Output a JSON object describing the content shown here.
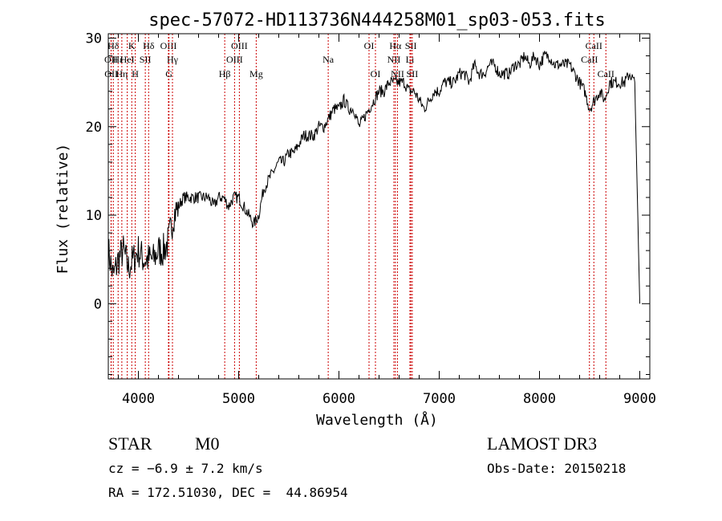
{
  "chart_data": {
    "type": "line",
    "title": "spec-57072-HD113736N444258M01_sp03-053.fits",
    "xlabel": "Wavelength (Å)",
    "ylabel": "Flux (relative)",
    "xlim": [
      3700,
      9100
    ],
    "ylim": [
      -8.5,
      30.5
    ],
    "xticks": [
      4000,
      5000,
      6000,
      7000,
      8000,
      9000
    ],
    "yticks": [
      0,
      10,
      20,
      30
    ],
    "x": [
      3700,
      3750,
      3800,
      3850,
      3900,
      3950,
      4000,
      4050,
      4100,
      4150,
      4200,
      4250,
      4300,
      4350,
      4400,
      4450,
      4500,
      4550,
      4600,
      4650,
      4700,
      4750,
      4800,
      4850,
      4900,
      4950,
      5000,
      5050,
      5100,
      5150,
      5200,
      5250,
      5300,
      5350,
      5400,
      5450,
      5500,
      5550,
      5600,
      5650,
      5700,
      5750,
      5800,
      5850,
      5900,
      5950,
      6000,
      6050,
      6100,
      6150,
      6200,
      6250,
      6300,
      6350,
      6400,
      6450,
      6500,
      6550,
      6600,
      6650,
      6700,
      6750,
      6800,
      6850,
      6900,
      6950,
      7000,
      7050,
      7100,
      7150,
      7200,
      7250,
      7300,
      7350,
      7400,
      7450,
      7500,
      7550,
      7600,
      7650,
      7700,
      7750,
      7800,
      7850,
      7900,
      7950,
      8000,
      8050,
      8100,
      8150,
      8200,
      8250,
      8300,
      8350,
      8400,
      8450,
      8500,
      8550,
      8600,
      8650,
      8700,
      8750,
      8800,
      8850,
      8900,
      8950,
      9000
    ],
    "series": [
      {
        "values": [
          6,
          3,
          5,
          6,
          4,
          5,
          6,
          5,
          5,
          5,
          6,
          6,
          7,
          10,
          11,
          12,
          12,
          12,
          12,
          12,
          12,
          11,
          12,
          12,
          11,
          12,
          12,
          11,
          10,
          9,
          10,
          13,
          14,
          15,
          16,
          16,
          17,
          17,
          18,
          19,
          19,
          19,
          20,
          20,
          21,
          22,
          22,
          23,
          22,
          22,
          20,
          21,
          22,
          23,
          24,
          24,
          25,
          25,
          25,
          25,
          24,
          24,
          23,
          22,
          23,
          24,
          24,
          25,
          25,
          25,
          26,
          26,
          25,
          27,
          26,
          26,
          27,
          27,
          26,
          26,
          26,
          27,
          27,
          28,
          27,
          28,
          27,
          28,
          28,
          27,
          27,
          27,
          27,
          26,
          25,
          24,
          22,
          23,
          24,
          23,
          25,
          25,
          25,
          25,
          26,
          25,
          0
        ]
      }
    ],
    "line_markers": [
      {
        "label": "Hδ",
        "x": 3750,
        "row": 1
      },
      {
        "label": "OII",
        "x": 3727,
        "row": 2
      },
      {
        "label": "OII",
        "x": 3729,
        "row": 3
      },
      {
        "label": "Hε",
        "x": 3798,
        "row": 2
      },
      {
        "label": "Hη",
        "x": 3835,
        "row": 3
      },
      {
        "label": "K",
        "x": 3934,
        "row": 1
      },
      {
        "label": "HeI",
        "x": 3889,
        "row": 2
      },
      {
        "label": "H",
        "x": 3969,
        "row": 3
      },
      {
        "label": "SII",
        "x": 4069,
        "row": 2
      },
      {
        "label": "Hδ",
        "x": 4102,
        "row": 1
      },
      {
        "label": "OIII",
        "x": 4300,
        "row": 1
      },
      {
        "label": "Hγ",
        "x": 4340,
        "row": 2
      },
      {
        "label": "G",
        "x": 4305,
        "row": 3
      },
      {
        "label": "Hβ",
        "x": 4861,
        "row": 3
      },
      {
        "label": "OIII",
        "x": 5007,
        "row": 1
      },
      {
        "label": "OIII",
        "x": 4959,
        "row": 2
      },
      {
        "label": "Mg",
        "x": 5175,
        "row": 3
      },
      {
        "label": "Na",
        "x": 5893,
        "row": 2
      },
      {
        "label": "OI",
        "x": 6300,
        "row": 1
      },
      {
        "label": "OI",
        "x": 6364,
        "row": 3
      },
      {
        "label": "Hα",
        "x": 6563,
        "row": 1
      },
      {
        "label": "SII",
        "x": 6717,
        "row": 1
      },
      {
        "label": "NII",
        "x": 6548,
        "row": 2
      },
      {
        "label": "Li",
        "x": 6708,
        "row": 2
      },
      {
        "label": "NII",
        "x": 6584,
        "row": 3
      },
      {
        "label": "SII",
        "x": 6731,
        "row": 3
      },
      {
        "label": "CaII",
        "x": 8542,
        "row": 1
      },
      {
        "label": "CaII",
        "x": 8498,
        "row": 2
      },
      {
        "label": "CaII",
        "x": 8662,
        "row": 3
      }
    ],
    "marker_color": "#cc0000"
  },
  "info": {
    "object_class": "STAR",
    "subclass": "M0",
    "survey": "LAMOST DR3",
    "cz": "cz = −6.9 ± 7.2 km/s",
    "obs_date": "Obs-Date: 20150218",
    "coords": "RA = 172.51030, DEC =  44.86954"
  }
}
